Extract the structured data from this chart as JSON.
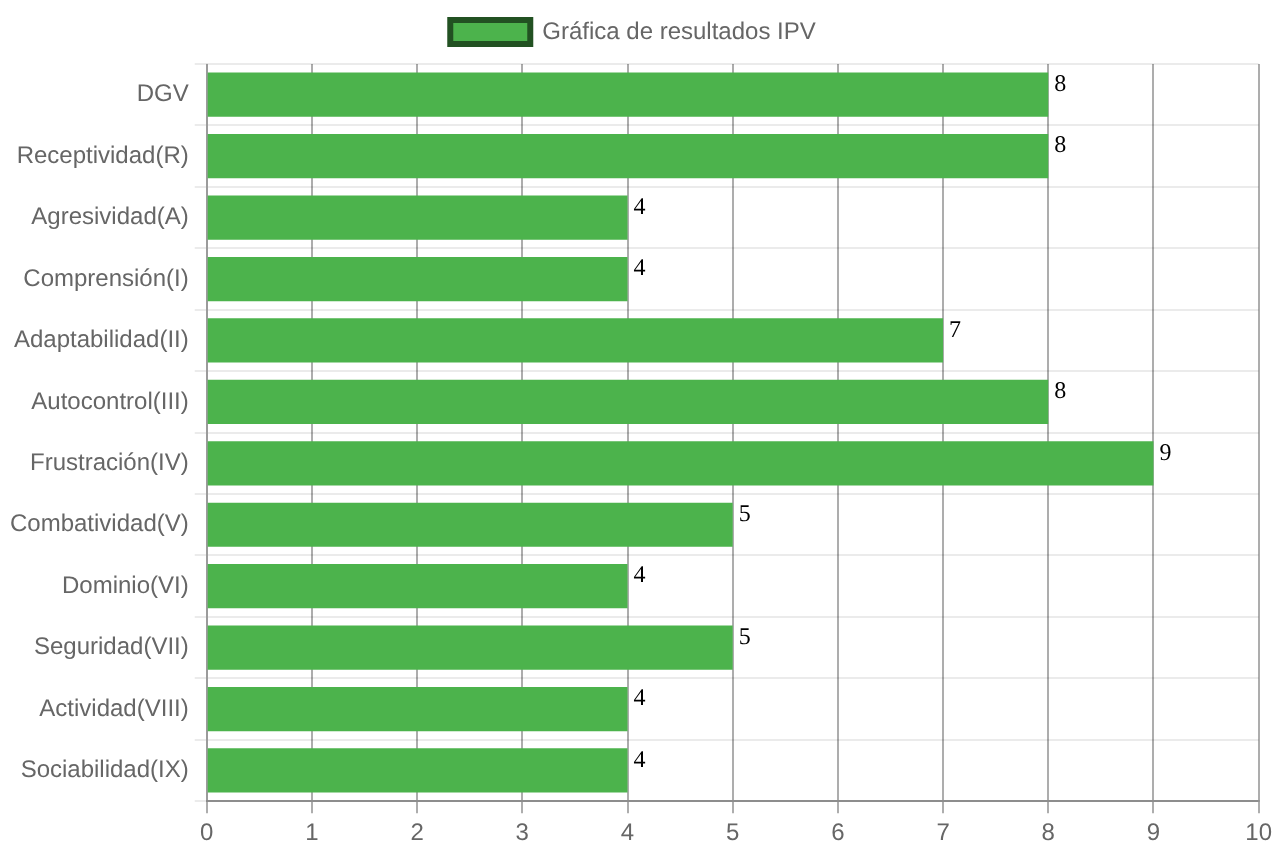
{
  "chart_data": {
    "type": "bar",
    "orientation": "horizontal",
    "categories": [
      "DGV",
      "Receptividad(R)",
      "Agresividad(A)",
      "Comprensión(I)",
      "Adaptabilidad(II)",
      "Autocontrol(III)",
      "Frustración(IV)",
      "Combatividad(V)",
      "Dominio(VI)",
      "Seguridad(VII)",
      "Actividad(VIII)",
      "Sociabilidad(IX)"
    ],
    "series": [
      {
        "name": "Gráfica de resultados IPV",
        "color": "#4cb34c",
        "values": [
          8,
          8,
          4,
          4,
          7,
          8,
          9,
          5,
          4,
          5,
          4,
          4
        ]
      }
    ],
    "xlim": [
      0,
      10
    ],
    "xticks": [
      0,
      1,
      2,
      3,
      4,
      5,
      6,
      7,
      8,
      9,
      10
    ],
    "grid": true,
    "legend": "top",
    "data_labels": true
  }
}
